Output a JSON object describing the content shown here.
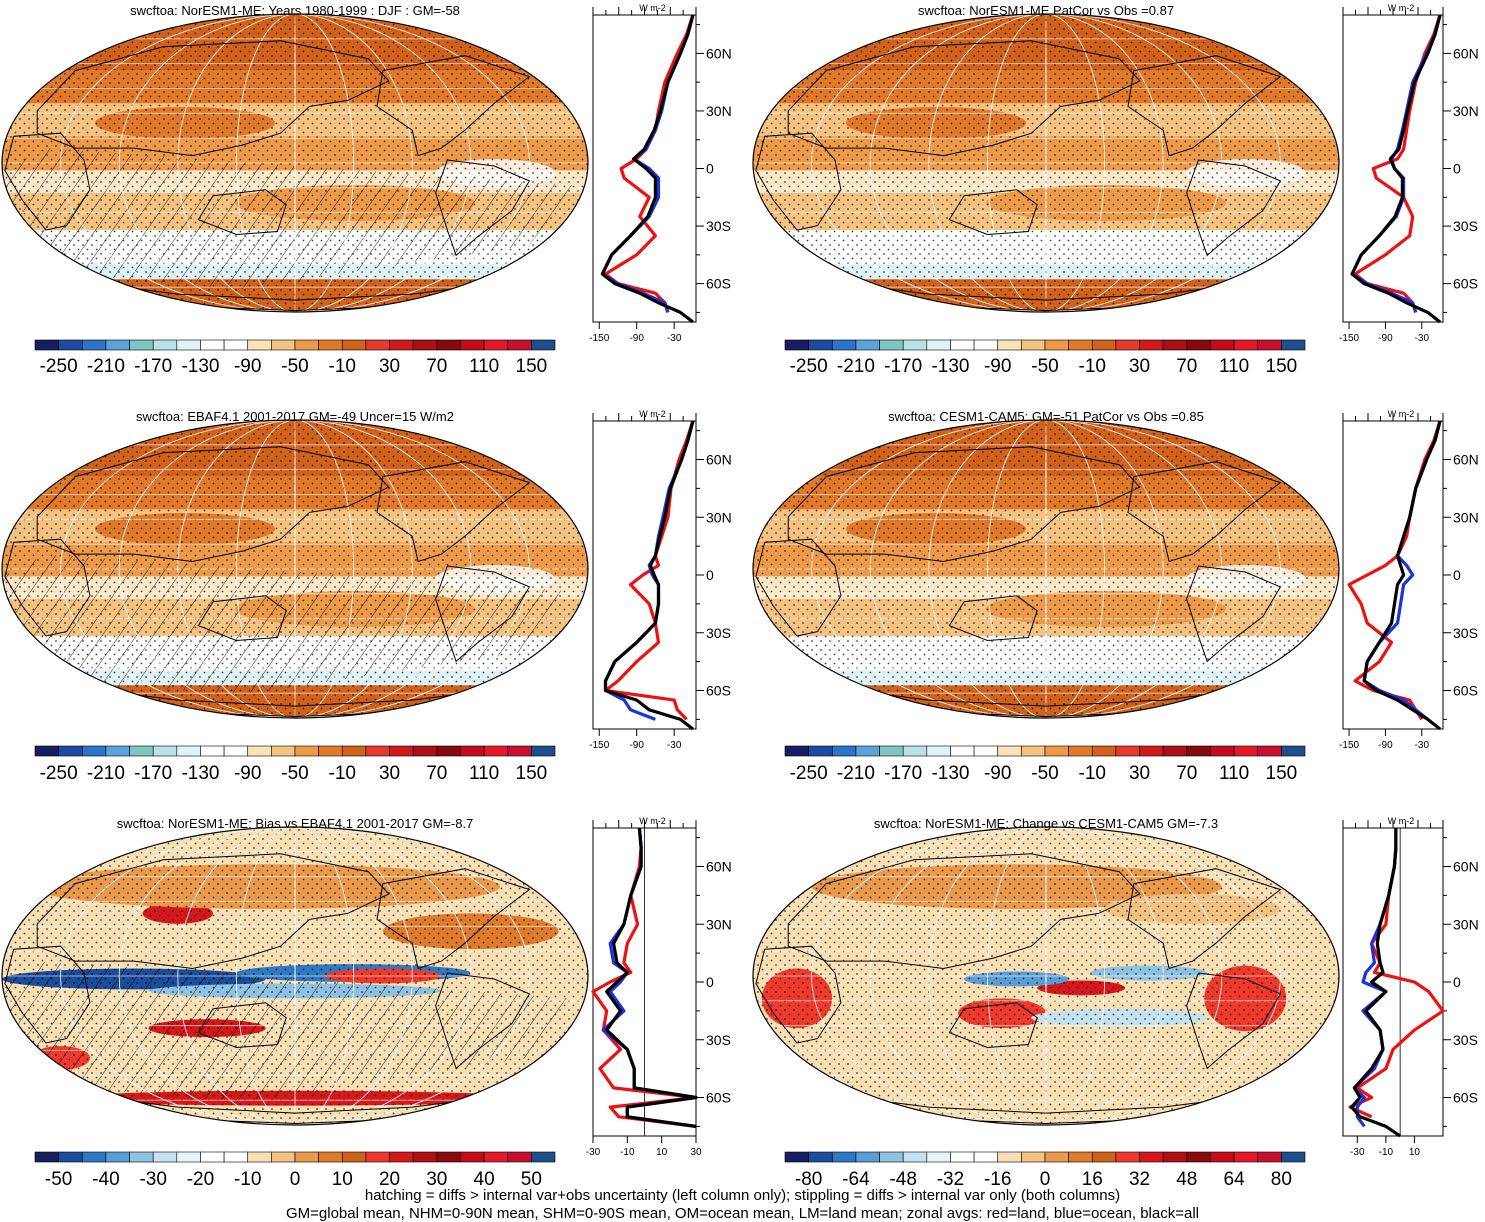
{
  "colors": {
    "land": "#2b6cff",
    "ocean_line": "#1a3cff",
    "red": "#ee1111",
    "blue": "#1a33dd",
    "black": "#000000"
  },
  "panels": [
    {
      "title": "swcftoa: NorESM1-ME: Years 1980-1999 : DJF : GM=-58",
      "colorbar": {
        "labels": [
          "-250",
          "-210",
          "-170",
          "-130",
          "-90",
          "-50",
          "-10",
          "30",
          "70",
          "110",
          "150"
        ],
        "palette": "abs"
      },
      "zonal": {
        "xticks": [
          "-150",
          "-90",
          "-30"
        ],
        "xrange": [
          -160,
          5
        ],
        "yticks": [
          "60N",
          "30N",
          "0",
          "30S",
          "60S"
        ],
        "unit_label": "W m-2"
      },
      "map_style": "mean",
      "hatch": true
    },
    {
      "title": "swcftoa: NorESM1-ME PatCor vs Obs =0.87",
      "colorbar": {
        "labels": [
          "-250",
          "-210",
          "-170",
          "-130",
          "-90",
          "-50",
          "-10",
          "30",
          "70",
          "110",
          "150"
        ],
        "palette": "abs"
      },
      "zonal": {
        "xticks": [
          "-150",
          "-90",
          "-30"
        ],
        "xrange": [
          -160,
          5
        ],
        "yticks": [
          "60N",
          "30N",
          "0",
          "30S",
          "60S"
        ],
        "unit_label": "W m-2"
      },
      "map_style": "mean",
      "hatch": false
    },
    {
      "title": "swcftoa: EBAF4.1 2001-2017 GM=-49 Uncer=15 W/m2",
      "colorbar": {
        "labels": [
          "-250",
          "-210",
          "-170",
          "-130",
          "-90",
          "-50",
          "-10",
          "30",
          "70",
          "110",
          "150"
        ],
        "palette": "abs"
      },
      "zonal": {
        "xticks": [
          "-150",
          "-90",
          "-30"
        ],
        "xrange": [
          -160,
          5
        ],
        "yticks": [
          "60N",
          "30N",
          "0",
          "30S",
          "60S"
        ],
        "unit_label": "W m-2"
      },
      "map_style": "mean",
      "hatch": true
    },
    {
      "title": "swcftoa: CESM1-CAM5: GM=-51 PatCor vs Obs =0.85",
      "colorbar": {
        "labels": [
          "-250",
          "-210",
          "-170",
          "-130",
          "-90",
          "-50",
          "-10",
          "30",
          "70",
          "110",
          "150"
        ],
        "palette": "abs"
      },
      "zonal": {
        "xticks": [
          "-150",
          "-90",
          "-30"
        ],
        "xrange": [
          -160,
          5
        ],
        "yticks": [
          "60N",
          "30N",
          "0",
          "30S",
          "60S"
        ],
        "unit_label": "W m-2"
      },
      "map_style": "mean",
      "hatch": false
    },
    {
      "title": "swcftoa: NorESM1-ME: Bias vs EBAF4.1 2001-2017 GM=-8.7",
      "colorbar": {
        "labels": [
          "-50",
          "-40",
          "-30",
          "-20",
          "-10",
          "0",
          "10",
          "20",
          "30",
          "40",
          "50"
        ],
        "palette": "diff"
      },
      "zonal": {
        "xticks": [
          "-30",
          "-10",
          "10",
          "30"
        ],
        "xrange": [
          -30,
          30
        ],
        "yticks": [
          "60N",
          "30N",
          "0",
          "30S",
          "60S"
        ],
        "unit_label": "W m-2"
      },
      "map_style": "bias",
      "hatch": true
    },
    {
      "title": "swcftoa: NorESM1-ME: Change vs CESM1-CAM5 GM=-7.3",
      "colorbar": {
        "labels": [
          "-80",
          "-64",
          "-48",
          "-32",
          "-16",
          "0",
          "16",
          "32",
          "48",
          "64",
          "80"
        ],
        "palette": "diff"
      },
      "zonal": {
        "xticks": [
          "-30",
          "-10",
          "10"
        ],
        "xrange": [
          -40,
          30
        ],
        "yticks": [
          "60N",
          "30N",
          "0",
          "30S",
          "60S"
        ],
        "unit_label": "W m-2"
      },
      "map_style": "change",
      "hatch": false
    }
  ],
  "chart_data": [
    {
      "type": "line",
      "title": "swcftoa: NorESM1-ME: Years 1980-1999 : DJF : GM=-58",
      "xlabel": "W m-2",
      "y": [
        80,
        70,
        60,
        45,
        30,
        20,
        10,
        5,
        0,
        -5,
        -15,
        -25,
        -35,
        -45,
        -55,
        -60,
        -65,
        -70,
        -75,
        -80
      ],
      "series": [
        {
          "name": "red=land",
          "values": [
            0,
            -10,
            -25,
            -45,
            -55,
            -60,
            -75,
            -90,
            -115,
            -110,
            -70,
            -85,
            -60,
            -90,
            -140,
            -120,
            -60,
            -45,
            -40,
            null
          ]
        },
        {
          "name": "blue=ocean",
          "values": [
            0,
            -8,
            -20,
            -40,
            -50,
            -60,
            -75,
            -95,
            -70,
            -55,
            -55,
            -70,
            -100,
            -130,
            -145,
            -120,
            -80,
            -45,
            -40,
            null
          ]
        },
        {
          "name": "black=all",
          "values": [
            0,
            -8,
            -20,
            -40,
            -52,
            -62,
            -78,
            -95,
            -75,
            -60,
            -60,
            -72,
            -100,
            -130,
            -145,
            -125,
            -85,
            -55,
            -20,
            0
          ]
        }
      ]
    },
    {
      "type": "line",
      "title": "swcftoa: NorESM1-ME PatCor vs Obs =0.87",
      "xlabel": "W m-2",
      "y": [
        80,
        70,
        60,
        45,
        30,
        20,
        10,
        5,
        0,
        -5,
        -15,
        -25,
        -35,
        -45,
        -55,
        -60,
        -65,
        -70,
        -75,
        -80
      ],
      "series": [
        {
          "name": "red=land",
          "values": [
            0,
            -10,
            -25,
            -40,
            -50,
            -55,
            -60,
            -70,
            -110,
            -105,
            -60,
            -45,
            -50,
            -90,
            -140,
            -120,
            -60,
            -45,
            -40,
            null
          ]
        },
        {
          "name": "blue=ocean",
          "values": [
            0,
            -8,
            -22,
            -45,
            -55,
            -62,
            -70,
            -80,
            -75,
            -60,
            -60,
            -72,
            -100,
            -130,
            -145,
            -120,
            -80,
            -45,
            -40,
            null
          ]
        },
        {
          "name": "black=all",
          "values": [
            0,
            -8,
            -20,
            -42,
            -53,
            -60,
            -68,
            -82,
            -75,
            -62,
            -62,
            -74,
            -100,
            -130,
            -145,
            -125,
            -85,
            -55,
            -20,
            0
          ]
        }
      ]
    },
    {
      "type": "line",
      "title": "swcftoa: EBAF4.1 2001-2017 GM=-49 Uncer=15 W/m2",
      "xlabel": "W m-2",
      "y": [
        80,
        70,
        60,
        45,
        30,
        20,
        10,
        5,
        0,
        -5,
        -15,
        -25,
        -35,
        -45,
        -55,
        -60,
        -65,
        -70,
        -75,
        -80
      ],
      "series": [
        {
          "name": "red=land",
          "values": [
            0,
            -10,
            -22,
            -35,
            -40,
            -50,
            -60,
            -55,
            -80,
            -100,
            -70,
            -60,
            -55,
            -90,
            -120,
            -140,
            -30,
            -25,
            -10,
            null
          ]
        },
        {
          "name": "blue=ocean",
          "values": [
            0,
            -8,
            -18,
            -38,
            -48,
            -55,
            -60,
            -70,
            -65,
            -55,
            -55,
            -60,
            -90,
            -125,
            -140,
            -140,
            -110,
            -100,
            -60,
            null
          ]
        },
        {
          "name": "black=all",
          "values": [
            0,
            -8,
            -18,
            -36,
            -45,
            -53,
            -60,
            -68,
            -62,
            -55,
            -55,
            -60,
            -90,
            -125,
            -140,
            -140,
            -90,
            -70,
            -20,
            0
          ]
        }
      ]
    },
    {
      "type": "line",
      "title": "swcftoa: CESM1-CAM5: GM=-51 PatCor vs Obs =0.85",
      "xlabel": "W m-2",
      "y": [
        80,
        70,
        60,
        45,
        30,
        20,
        10,
        5,
        0,
        -5,
        -15,
        -25,
        -35,
        -45,
        -55,
        -60,
        -65,
        -70,
        -75,
        -80
      ],
      "series": [
        {
          "name": "red=land",
          "values": [
            0,
            -10,
            -25,
            -40,
            -50,
            -55,
            -70,
            -90,
            -120,
            -150,
            -130,
            -120,
            -80,
            -100,
            -140,
            -110,
            -50,
            -40,
            -30,
            null
          ]
        },
        {
          "name": "blue=ocean",
          "values": [
            0,
            -8,
            -22,
            -40,
            -50,
            -60,
            -70,
            -55,
            -45,
            -60,
            -65,
            -70,
            -100,
            -120,
            -125,
            -100,
            -60,
            -40,
            -20,
            null
          ]
        },
        {
          "name": "black=all",
          "values": [
            0,
            -8,
            -22,
            -40,
            -50,
            -60,
            -70,
            -65,
            -60,
            -70,
            -75,
            -80,
            -100,
            -120,
            -125,
            -105,
            -70,
            -45,
            -20,
            0
          ]
        }
      ]
    },
    {
      "type": "line",
      "title": "swcftoa: NorESM1-ME: Bias vs EBAF4.1 2001-2017 GM=-8.7",
      "xlabel": "W m-2",
      "y": [
        80,
        70,
        60,
        45,
        30,
        20,
        10,
        5,
        0,
        -5,
        -15,
        -25,
        -35,
        -45,
        -55,
        -60,
        -65,
        -70,
        -75,
        -80
      ],
      "series": [
        {
          "name": "red=land",
          "values": [
            -3,
            -2,
            -3,
            -8,
            -4,
            -10,
            -12,
            -8,
            -20,
            -30,
            -22,
            -24,
            -14,
            -26,
            -18,
            30,
            -20,
            -15,
            30,
            null
          ]
        },
        {
          "name": "blue=ocean",
          "values": [
            -3,
            -2,
            -2,
            -8,
            -12,
            -20,
            -18,
            -10,
            -14,
            -20,
            -12,
            -24,
            -10,
            -6,
            -6,
            30,
            -10,
            -10,
            30,
            null
          ]
        },
        {
          "name": "black=all",
          "values": [
            -3,
            -2,
            -2,
            -8,
            -12,
            -18,
            -16,
            -10,
            -16,
            -22,
            -14,
            -22,
            -10,
            -6,
            -6,
            30,
            -10,
            -10,
            30,
            null
          ]
        }
      ]
    },
    {
      "type": "line",
      "title": "swcftoa: NorESM1-ME: Change vs CESM1-CAM5 GM=-7.3",
      "xlabel": "W m-2",
      "y": [
        80,
        70,
        60,
        45,
        30,
        20,
        10,
        5,
        0,
        -5,
        -15,
        -25,
        -35,
        -45,
        -55,
        -60,
        -65,
        -70,
        -75,
        -80
      ],
      "series": [
        {
          "name": "red=land",
          "values": [
            -3,
            -3,
            -4,
            -8,
            -10,
            -20,
            -14,
            -18,
            10,
            20,
            30,
            10,
            -5,
            -10,
            -30,
            -20,
            -35,
            -20,
            null,
            null
          ]
        },
        {
          "name": "blue=ocean",
          "values": [
            -3,
            -3,
            -4,
            -8,
            -14,
            -20,
            -18,
            -24,
            -26,
            -10,
            -26,
            -14,
            -12,
            -18,
            -32,
            -25,
            -30,
            -30,
            -25,
            null
          ]
        },
        {
          "name": "black=all",
          "values": [
            -3,
            -3,
            -4,
            -8,
            -14,
            -16,
            -14,
            -12,
            -20,
            -10,
            -24,
            -14,
            -12,
            -20,
            -32,
            -28,
            -34,
            -28,
            -10,
            0
          ]
        }
      ]
    }
  ],
  "footer": {
    "line1": "hatching = diffs > internal var+obs uncertainty (left column only); stippling = diffs > internal var only (both columns)",
    "line2": "GM=global mean, NHM=0-90N mean, SHM=0-90S mean, OM=ocean mean, LM=land mean; zonal avgs: red=land, blue=ocean, black=all"
  }
}
